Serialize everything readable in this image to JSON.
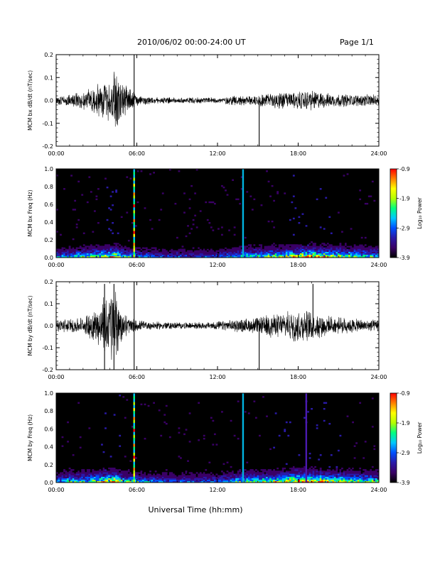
{
  "header": {
    "title": "2010/06/02  00:00-24:00 UT",
    "page": "Page 1/1"
  },
  "xlabel": "Universal Time (hh:mm)",
  "x_ticks": [
    "00:00",
    "06:00",
    "12:00",
    "18:00",
    "24:00"
  ],
  "colorbar": {
    "label": "Log₁₀ Power",
    "ticks": [
      "-0.9",
      "-1.9",
      "-2.9",
      "-3.9"
    ],
    "range": [
      -3.9,
      -0.9
    ],
    "colormap": [
      "#000000",
      "#3a0066",
      "#2a1aa8",
      "#0050ff",
      "#00c8ff",
      "#00ff80",
      "#b4ff00",
      "#ffff00",
      "#ff8000",
      "#ff0000"
    ]
  },
  "chart_data": [
    {
      "type": "line",
      "ylabel": "MCM bx dB/dt (nT/sec)",
      "xlim": [
        0,
        24
      ],
      "ylim": [
        -0.2,
        0.2
      ],
      "y_ticks": [
        "0.2",
        "0.1",
        "0.0",
        "-0.1",
        "-0.2"
      ],
      "grid": false,
      "envelope_x": [
        0,
        2,
        3,
        4,
        4.5,
        5,
        5.5,
        5.8,
        6,
        7,
        9,
        11,
        12,
        13,
        15,
        16,
        18,
        19,
        20,
        22,
        24
      ],
      "envelope_amplitude": [
        0.02,
        0.03,
        0.05,
        0.08,
        0.12,
        0.06,
        0.04,
        0.03,
        0.02,
        0.012,
        0.01,
        0.01,
        0.01,
        0.015,
        0.02,
        0.03,
        0.03,
        0.035,
        0.025,
        0.02,
        0.02
      ],
      "spikes": [
        {
          "time": 5.8,
          "min": -0.2,
          "max": 0.2
        },
        {
          "time": 15.1,
          "min": -0.2,
          "max": 0.0
        }
      ]
    },
    {
      "type": "heatmap",
      "ylabel": "MCM bx Freq (Hz)",
      "xlim": [
        0,
        24
      ],
      "ylim": [
        0,
        1.0
      ],
      "y_ticks": [
        "1.0",
        "0.8",
        "0.6",
        "0.4",
        "0.2",
        "0.0"
      ],
      "activity_x": [
        0,
        2,
        3,
        4,
        4.5,
        5,
        6,
        8,
        10,
        12,
        13,
        14,
        15,
        16,
        17,
        18,
        19,
        20,
        21,
        22,
        23,
        24
      ],
      "activity_level": [
        0.4,
        0.5,
        0.6,
        0.7,
        0.8,
        0.5,
        0.4,
        0.3,
        0.3,
        0.3,
        0.4,
        0.5,
        0.55,
        0.6,
        0.65,
        0.75,
        0.8,
        0.7,
        0.65,
        0.6,
        0.55,
        0.5
      ],
      "vertical_lines": [
        {
          "time": 5.8,
          "color": "#00c8ff",
          "style": "rainbow"
        },
        {
          "time": 13.9,
          "color": "#00b4e0",
          "style": "solid"
        }
      ]
    },
    {
      "type": "line",
      "ylabel": "MCM by dB/dt (nT/sec)",
      "xlim": [
        0,
        24
      ],
      "ylim": [
        -0.2,
        0.2
      ],
      "y_ticks": [
        "0.2",
        "0.1",
        "0.0",
        "-0.1",
        "-0.2"
      ],
      "grid": false,
      "envelope_x": [
        0,
        2,
        3,
        3.5,
        4,
        4.5,
        5,
        5.5,
        5.8,
        6,
        7,
        9,
        11,
        12,
        13,
        15,
        16,
        17,
        18,
        19,
        20,
        22,
        24
      ],
      "envelope_amplitude": [
        0.02,
        0.03,
        0.06,
        0.1,
        0.14,
        0.12,
        0.05,
        0.03,
        0.025,
        0.02,
        0.015,
        0.012,
        0.012,
        0.015,
        0.02,
        0.03,
        0.04,
        0.045,
        0.06,
        0.05,
        0.035,
        0.025,
        0.02
      ],
      "spikes": [
        {
          "time": 3.6,
          "min": -0.2,
          "max": 0.19
        },
        {
          "time": 4.3,
          "min": -0.2,
          "max": 0.19
        },
        {
          "time": 5.8,
          "min": -0.2,
          "max": 0.2
        },
        {
          "time": 15.1,
          "min": -0.2,
          "max": 0.0
        },
        {
          "time": 19.1,
          "min": 0.0,
          "max": 0.19
        }
      ]
    },
    {
      "type": "heatmap",
      "ylabel": "MCM by Freq (Hz)",
      "xlim": [
        0,
        24
      ],
      "ylim": [
        0,
        1.0
      ],
      "y_ticks": [
        "1.0",
        "0.8",
        "0.6",
        "0.4",
        "0.2",
        "0.0"
      ],
      "activity_x": [
        0,
        2,
        3,
        4,
        4.5,
        5,
        6,
        8,
        10,
        12,
        13,
        14,
        15,
        16,
        17,
        18,
        19,
        20,
        21,
        22,
        23,
        24
      ],
      "activity_level": [
        0.45,
        0.55,
        0.65,
        0.75,
        0.85,
        0.55,
        0.45,
        0.35,
        0.35,
        0.35,
        0.45,
        0.55,
        0.6,
        0.65,
        0.75,
        0.85,
        0.85,
        0.75,
        0.7,
        0.65,
        0.6,
        0.55
      ],
      "vertical_lines": [
        {
          "time": 5.8,
          "color": "#00c8ff",
          "style": "rainbow"
        },
        {
          "time": 13.9,
          "color": "#00b4e0",
          "style": "solid"
        },
        {
          "time": 18.6,
          "color": "#4a1ab0",
          "style": "solid"
        }
      ]
    }
  ]
}
